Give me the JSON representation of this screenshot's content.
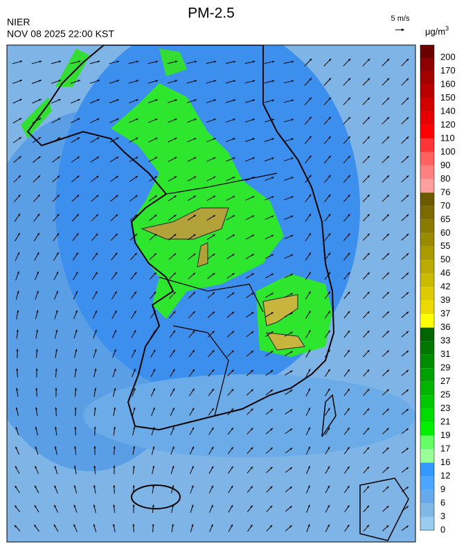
{
  "header": {
    "title": "PM-2.5",
    "agency": "NIER",
    "datetime": "NOV 08 2025 22:00 KST",
    "vector_scale": "5 m/s"
  },
  "colorbar": {
    "unit": "μg/m",
    "unit_exponent": "3",
    "levels": [
      {
        "label": 200,
        "color": "#6a0000"
      },
      {
        "label": 170,
        "color": "#8b0000"
      },
      {
        "label": 160,
        "color": "#a30000"
      },
      {
        "label": 150,
        "color": "#b80000"
      },
      {
        "label": 140,
        "color": "#d20000"
      },
      {
        "label": 120,
        "color": "#e80000"
      },
      {
        "label": 110,
        "color": "#ff0000"
      },
      {
        "label": 100,
        "color": "#ff3535"
      },
      {
        "label": 90,
        "color": "#ff6060"
      },
      {
        "label": 80,
        "color": "#ff8080"
      },
      {
        "label": 76,
        "color": "#ffa0a0"
      },
      {
        "label": 70,
        "color": "#6b5a00"
      },
      {
        "label": 65,
        "color": "#7a6a00"
      },
      {
        "label": 60,
        "color": "#8a7a00"
      },
      {
        "label": 55,
        "color": "#9a8a00"
      },
      {
        "label": 50,
        "color": "#aa9a00"
      },
      {
        "label": 46,
        "color": "#bbaa00"
      },
      {
        "label": 42,
        "color": "#cbbb00"
      },
      {
        "label": 39,
        "color": "#dccb00"
      },
      {
        "label": 37,
        "color": "#ecdb00"
      },
      {
        "label": 36,
        "color": "#ffff00"
      },
      {
        "label": 33,
        "color": "#006400"
      },
      {
        "label": 31,
        "color": "#007800"
      },
      {
        "label": 29,
        "color": "#008c00"
      },
      {
        "label": 27,
        "color": "#00a000"
      },
      {
        "label": 25,
        "color": "#00b400"
      },
      {
        "label": 23,
        "color": "#00c800"
      },
      {
        "label": 21,
        "color": "#00dc00"
      },
      {
        "label": 19,
        "color": "#00f000"
      },
      {
        "label": 17,
        "color": "#66ff66"
      },
      {
        "label": 16,
        "color": "#99ff99"
      },
      {
        "label": 12,
        "color": "#3399ff"
      },
      {
        "label": 9,
        "color": "#4da6ff"
      },
      {
        "label": 6,
        "color": "#66aaee"
      },
      {
        "label": 3,
        "color": "#80b8e8"
      },
      {
        "label": 0,
        "color": "#99ccee"
      }
    ]
  }
}
